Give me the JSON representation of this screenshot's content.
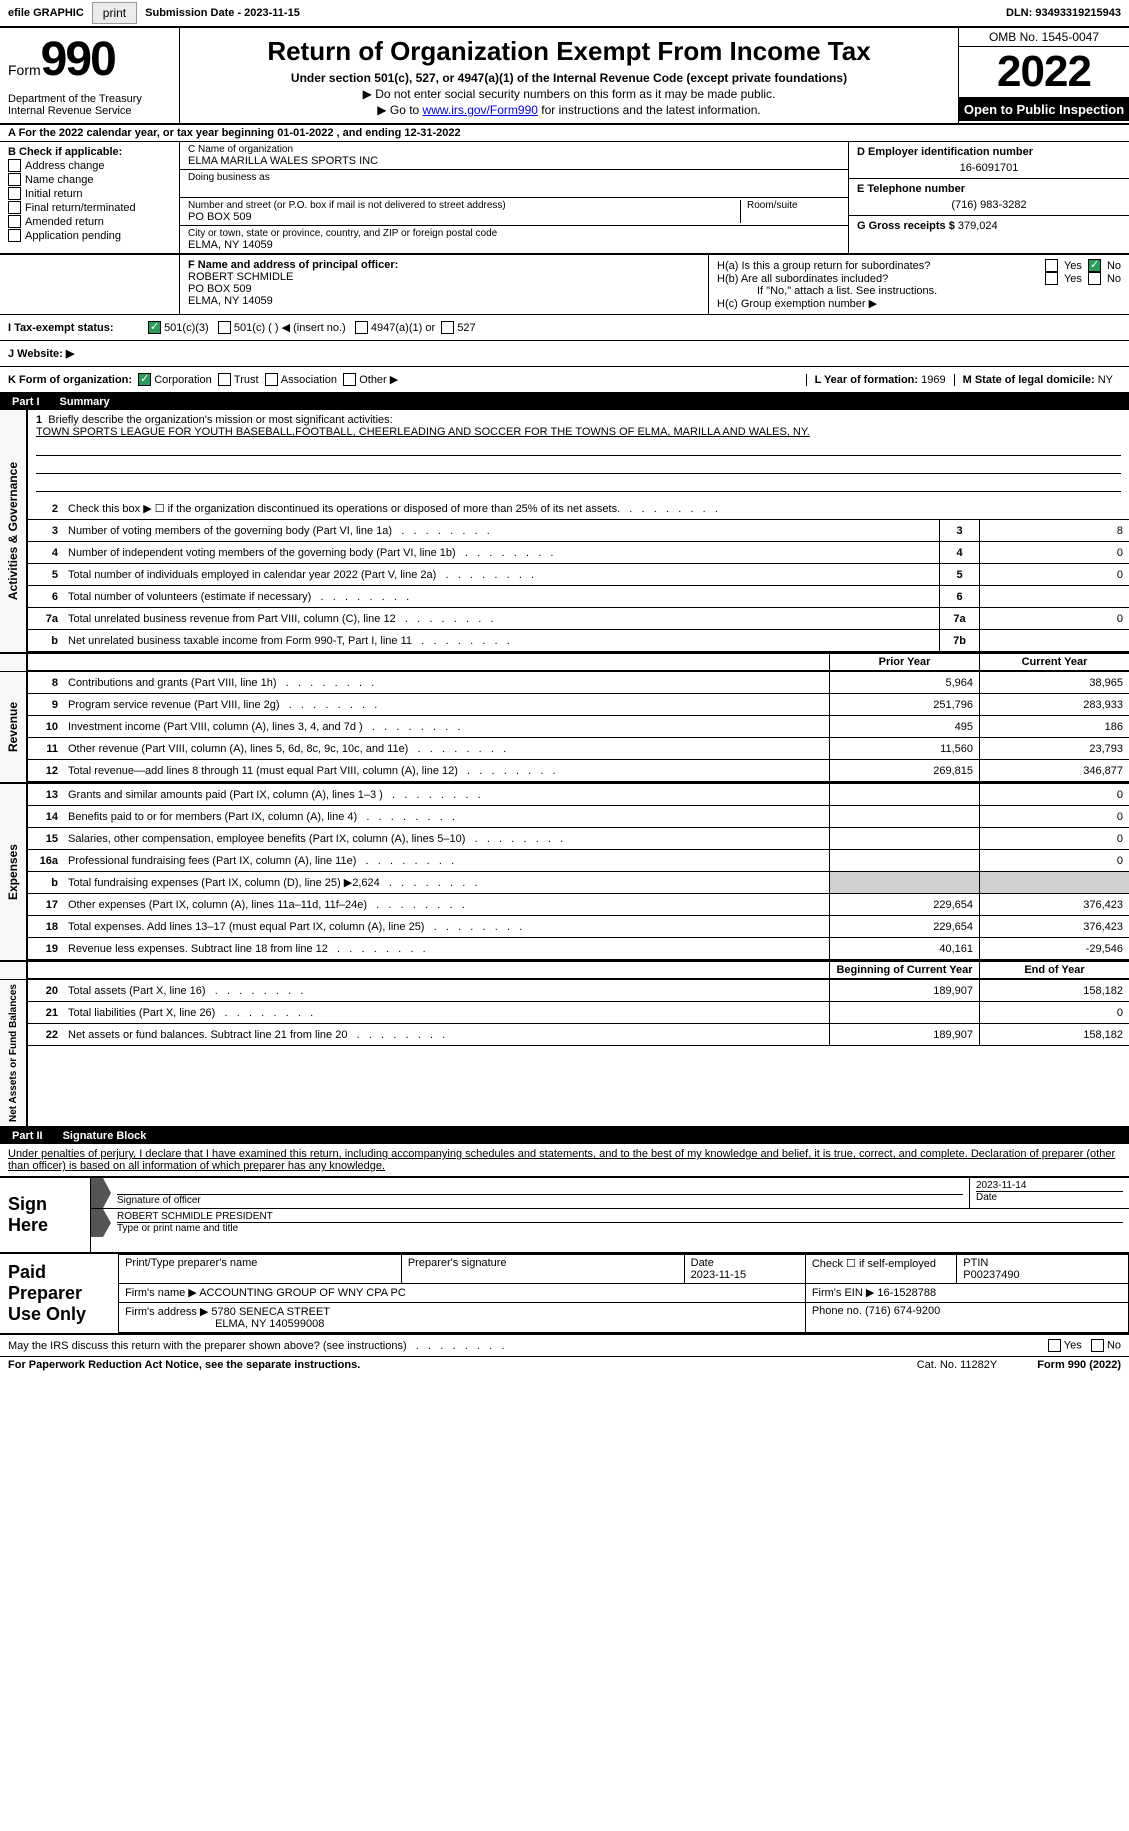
{
  "topbar": {
    "efile_label": "efile GRAPHIC",
    "print_btn": "print",
    "submission_label": "Submission Date - 2023-11-15",
    "dln": "DLN: 93493319215943"
  },
  "header": {
    "form_label": "Form",
    "form_number": "990",
    "dept": "Department of the Treasury Internal Revenue Service",
    "title": "Return of Organization Exempt From Income Tax",
    "sub1": "Under section 501(c), 527, or 4947(a)(1) of the Internal Revenue Code (except private foundations)",
    "sub2": "▶ Do not enter social security numbers on this form as it may be made public.",
    "sub3_prefix": "▶ Go to ",
    "sub3_link": "www.irs.gov/Form990",
    "sub3_suffix": " for instructions and the latest information.",
    "omb": "OMB No. 1545-0047",
    "year": "2022",
    "inspection": "Open to Public Inspection"
  },
  "section_a": "A For the 2022 calendar year, or tax year beginning 01-01-2022    , and ending 12-31-2022",
  "col_b": {
    "header": "B Check if applicable:",
    "items": [
      "Address change",
      "Name change",
      "Initial return",
      "Final return/terminated",
      "Amended return",
      "Application pending"
    ]
  },
  "col_c": {
    "name_label": "C Name of organization",
    "name": "ELMA MARILLA WALES SPORTS INC",
    "dba_label": "Doing business as",
    "addr_label": "Number and street (or P.O. box if mail is not delivered to street address)",
    "room_label": "Room/suite",
    "addr": "PO BOX 509",
    "city_label": "City or town, state or province, country, and ZIP or foreign postal code",
    "city": "ELMA, NY  14059"
  },
  "col_d": {
    "ein_label": "D Employer identification number",
    "ein": "16-6091701",
    "phone_label": "E Telephone number",
    "phone": "(716) 983-3282",
    "gross_label": "G Gross receipts $",
    "gross": "379,024"
  },
  "row_f": {
    "label": "F Name and address of principal officer:",
    "name": "ROBERT SCHMIDLE",
    "addr1": "PO BOX 509",
    "addr2": "ELMA, NY  14059",
    "ha": "H(a)  Is this a group return for subordinates?",
    "hb": "H(b)  Are all subordinates included?",
    "hb_note": "If \"No,\" attach a list. See instructions.",
    "hc": "H(c)  Group exemption number ▶",
    "yes": "Yes",
    "no": "No"
  },
  "row_i": {
    "label": "I   Tax-exempt status:",
    "opt1": "501(c)(3)",
    "opt2": "501(c) (  ) ◀ (insert no.)",
    "opt3": "4947(a)(1) or",
    "opt4": "527"
  },
  "row_j": {
    "label": "J   Website: ▶"
  },
  "row_k": {
    "label": "K Form of organization:",
    "opts": [
      "Corporation",
      "Trust",
      "Association",
      "Other ▶"
    ],
    "l_label": "L Year of formation:",
    "l_val": "1969",
    "m_label": "M State of legal domicile:",
    "m_val": "NY"
  },
  "part1": {
    "tab": "Part I",
    "title": "Summary"
  },
  "mission": {
    "num": "1",
    "label": "Briefly describe the organization's mission or most significant activities:",
    "text": "TOWN SPORTS LEAGUE FOR YOUTH BASEBALL,FOOTBALL, CHEERLEADING AND SOCCER FOR THE TOWNS OF ELMA, MARILLA AND WALES, NY."
  },
  "governance": {
    "side": "Activities & Governance",
    "rows": [
      {
        "n": "2",
        "t": "Check this box ▶ ☐  if the organization discontinued its operations or disposed of more than 25% of its net assets.",
        "box": "",
        "v": ""
      },
      {
        "n": "3",
        "t": "Number of voting members of the governing body (Part VI, line 1a)",
        "box": "3",
        "v": "8"
      },
      {
        "n": "4",
        "t": "Number of independent voting members of the governing body (Part VI, line 1b)",
        "box": "4",
        "v": "0"
      },
      {
        "n": "5",
        "t": "Total number of individuals employed in calendar year 2022 (Part V, line 2a)",
        "box": "5",
        "v": "0"
      },
      {
        "n": "6",
        "t": "Total number of volunteers (estimate if necessary)",
        "box": "6",
        "v": ""
      },
      {
        "n": "7a",
        "t": "Total unrelated business revenue from Part VIII, column (C), line 12",
        "box": "7a",
        "v": "0"
      },
      {
        "n": "b",
        "t": "Net unrelated business taxable income from Form 990-T, Part I, line 11",
        "box": "7b",
        "v": ""
      }
    ]
  },
  "col_headers": {
    "prior": "Prior Year",
    "current": "Current Year"
  },
  "revenue": {
    "side": "Revenue",
    "rows": [
      {
        "n": "8",
        "t": "Contributions and grants (Part VIII, line 1h)",
        "p": "5,964",
        "c": "38,965"
      },
      {
        "n": "9",
        "t": "Program service revenue (Part VIII, line 2g)",
        "p": "251,796",
        "c": "283,933"
      },
      {
        "n": "10",
        "t": "Investment income (Part VIII, column (A), lines 3, 4, and 7d )",
        "p": "495",
        "c": "186"
      },
      {
        "n": "11",
        "t": "Other revenue (Part VIII, column (A), lines 5, 6d, 8c, 9c, 10c, and 11e)",
        "p": "11,560",
        "c": "23,793"
      },
      {
        "n": "12",
        "t": "Total revenue—add lines 8 through 11 (must equal Part VIII, column (A), line 12)",
        "p": "269,815",
        "c": "346,877"
      }
    ]
  },
  "expenses": {
    "side": "Expenses",
    "rows": [
      {
        "n": "13",
        "t": "Grants and similar amounts paid (Part IX, column (A), lines 1–3 )",
        "p": "",
        "c": "0"
      },
      {
        "n": "14",
        "t": "Benefits paid to or for members (Part IX, column (A), line 4)",
        "p": "",
        "c": "0"
      },
      {
        "n": "15",
        "t": "Salaries, other compensation, employee benefits (Part IX, column (A), lines 5–10)",
        "p": "",
        "c": "0"
      },
      {
        "n": "16a",
        "t": "Professional fundraising fees (Part IX, column (A), line 11e)",
        "p": "",
        "c": "0"
      },
      {
        "n": "b",
        "t": "Total fundraising expenses (Part IX, column (D), line 25) ▶2,624",
        "p": "shade",
        "c": "shade"
      },
      {
        "n": "17",
        "t": "Other expenses (Part IX, column (A), lines 11a–11d, 11f–24e)",
        "p": "229,654",
        "c": "376,423"
      },
      {
        "n": "18",
        "t": "Total expenses. Add lines 13–17 (must equal Part IX, column (A), line 25)",
        "p": "229,654",
        "c": "376,423"
      },
      {
        "n": "19",
        "t": "Revenue less expenses. Subtract line 18 from line 12",
        "p": "40,161",
        "c": "-29,546"
      }
    ]
  },
  "netassets": {
    "side": "Net Assets or Fund Balances",
    "headers": {
      "begin": "Beginning of Current Year",
      "end": "End of Year"
    },
    "rows": [
      {
        "n": "20",
        "t": "Total assets (Part X, line 16)",
        "p": "189,907",
        "c": "158,182"
      },
      {
        "n": "21",
        "t": "Total liabilities (Part X, line 26)",
        "p": "",
        "c": "0"
      },
      {
        "n": "22",
        "t": "Net assets or fund balances. Subtract line 21 from line 20",
        "p": "189,907",
        "c": "158,182"
      }
    ]
  },
  "part2": {
    "tab": "Part II",
    "title": "Signature Block"
  },
  "sig_decl": "Under penalties of perjury, I declare that I have examined this return, including accompanying schedules and statements, and to the best of my knowledge and belief, it is true, correct, and complete. Declaration of preparer (other than officer) is based on all information of which preparer has any knowledge.",
  "sign": {
    "label": "Sign Here",
    "sig_of_officer": "Signature of officer",
    "date": "2023-11-14",
    "date_label": "Date",
    "name": "ROBERT SCHMIDLE  PRESIDENT",
    "name_label": "Type or print name and title"
  },
  "paid": {
    "label": "Paid Preparer Use Only",
    "print_name_label": "Print/Type preparer's name",
    "sig_label": "Preparer's signature",
    "date_label": "Date",
    "date": "2023-11-15",
    "check_label": "Check ☐ if self-employed",
    "ptin_label": "PTIN",
    "ptin": "P00237490",
    "firm_name_label": "Firm's name    ▶",
    "firm_name": "ACCOUNTING GROUP OF WNY CPA PC",
    "firm_ein_label": "Firm's EIN ▶",
    "firm_ein": "16-1528788",
    "firm_addr_label": "Firm's address ▶",
    "firm_addr1": "5780 SENECA STREET",
    "firm_addr2": "ELMA, NY  140599008",
    "phone_label": "Phone no.",
    "phone": "(716) 674-9200"
  },
  "discuss": {
    "text": "May the IRS discuss this return with the preparer shown above? (see instructions)",
    "yes": "Yes",
    "no": "No"
  },
  "footer": {
    "paperwork": "For Paperwork Reduction Act Notice, see the separate instructions.",
    "cat": "Cat. No. 11282Y",
    "form": "Form 990 (2022)"
  },
  "colors": {
    "black": "#000000",
    "white": "#ffffff",
    "check_green": "#2a9d5a",
    "link": "#0000ee",
    "shade": "#d0d0d0",
    "btn_bg": "#eceaea"
  }
}
